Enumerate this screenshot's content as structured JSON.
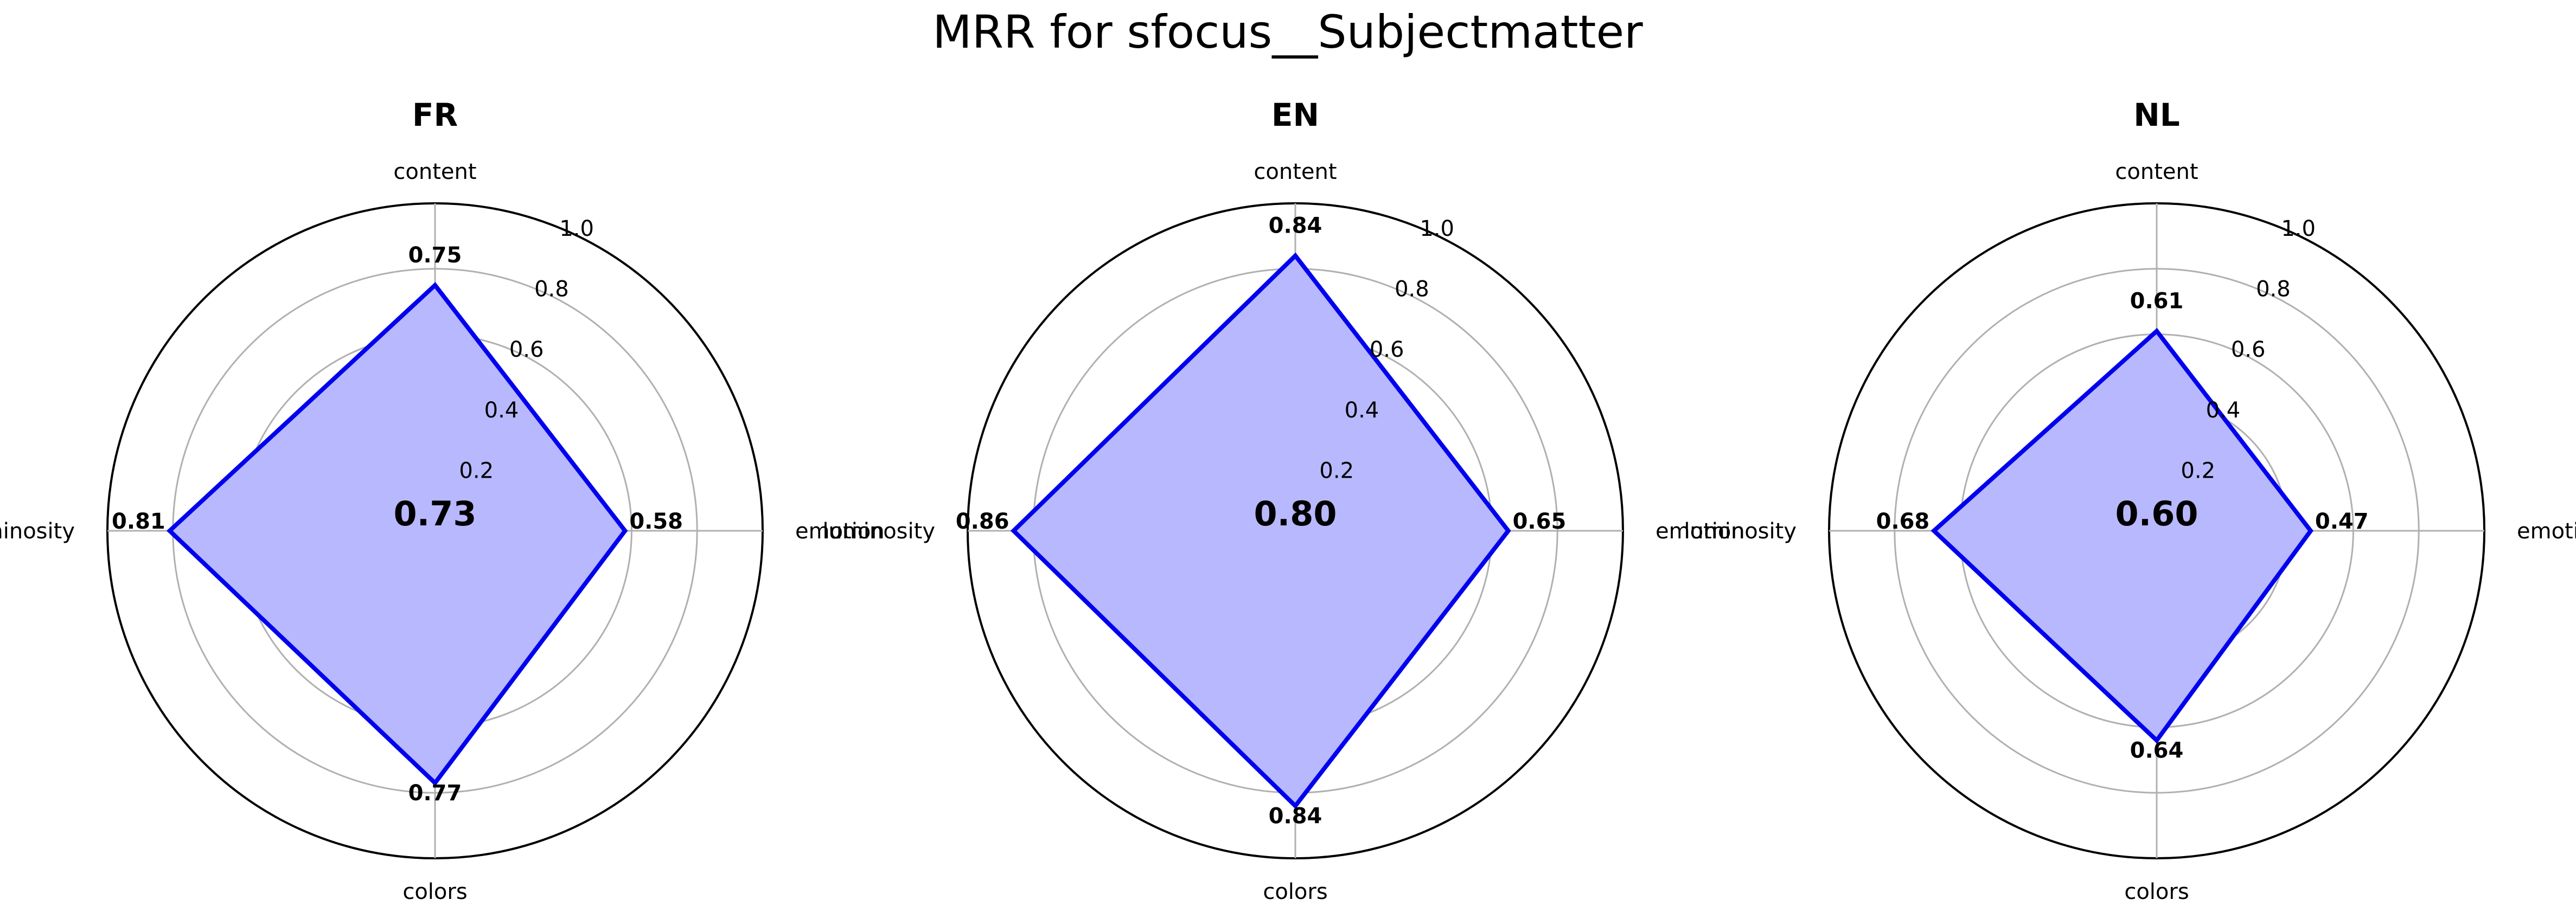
{
  "figure": {
    "title": "MRR for sfocus__Subjectmatter"
  },
  "chart_data": [
    {
      "type": "radar",
      "title": "FR",
      "categories": [
        "content",
        "emotion",
        "colors",
        "luminosity"
      ],
      "values": [
        0.75,
        0.58,
        0.77,
        0.81
      ],
      "value_labels": [
        "0.75",
        "0.58",
        "0.77",
        "0.81"
      ],
      "center_value": "0.73",
      "rlim": [
        0,
        1.0
      ],
      "rticks": [
        "0.2",
        "0.4",
        "0.6",
        "0.8",
        "1.0"
      ],
      "grid": true
    },
    {
      "type": "radar",
      "title": "EN",
      "categories": [
        "content",
        "emotion",
        "colors",
        "luminosity"
      ],
      "values": [
        0.84,
        0.65,
        0.84,
        0.86
      ],
      "value_labels": [
        "0.84",
        "0.65",
        "0.84",
        "0.86"
      ],
      "center_value": "0.80",
      "rlim": [
        0,
        1.0
      ],
      "rticks": [
        "0.2",
        "0.4",
        "0.6",
        "0.8",
        "1.0"
      ],
      "grid": true
    },
    {
      "type": "radar",
      "title": "NL",
      "categories": [
        "content",
        "emotion",
        "colors",
        "luminosity"
      ],
      "values": [
        0.61,
        0.47,
        0.64,
        0.68
      ],
      "value_labels": [
        "0.61",
        "0.47",
        "0.64",
        "0.68"
      ],
      "center_value": "0.60",
      "rlim": [
        0,
        1.0
      ],
      "rticks": [
        "0.2",
        "0.4",
        "0.6",
        "0.8",
        "1.0"
      ],
      "grid": true
    }
  ],
  "colors": {
    "line": "#0000ee",
    "fill": "#b8b8ff",
    "grid": "#b0b0b0",
    "spine": "#000000",
    "text": "#000000"
  }
}
